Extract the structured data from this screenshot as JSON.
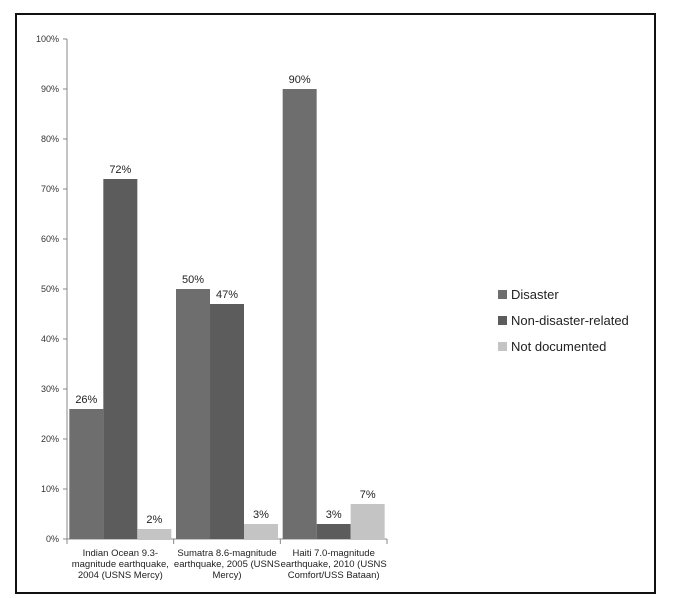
{
  "chart_data": {
    "type": "bar",
    "title": "",
    "xlabel": "",
    "ylabel": "",
    "ylim": [
      0,
      100
    ],
    "y_ticks": [
      "0%",
      "10%",
      "20%",
      "30%",
      "40%",
      "50%",
      "60%",
      "70%",
      "80%",
      "90%",
      "100%"
    ],
    "grid": false,
    "legend_position": "right",
    "categories": [
      [
        "Indian Ocean 9.3-",
        "magnitude earthquake,",
        "2004 (USNS Mercy)"
      ],
      [
        "Sumatra 8.6-magnitude",
        "earthquake, 2005 (USNS",
        "Mercy)"
      ],
      [
        "Haiti 7.0-magnitude",
        "earthquake, 2010 (USNS",
        "Comfort/USS Bataan)"
      ]
    ],
    "series": [
      {
        "name": "Disaster",
        "color": "#6e6e6e",
        "values": [
          26,
          50,
          90
        ],
        "labels": [
          "26%",
          "50%",
          "90%"
        ]
      },
      {
        "name": "Non-disaster-related",
        "color": "#5c5c5c",
        "values": [
          72,
          47,
          3
        ],
        "labels": [
          "72%",
          "47%",
          "3%"
        ]
      },
      {
        "name": "Not documented",
        "color": "#c4c4c4",
        "values": [
          2,
          3,
          7
        ],
        "labels": [
          "2%",
          "3%",
          "7%"
        ]
      }
    ]
  }
}
